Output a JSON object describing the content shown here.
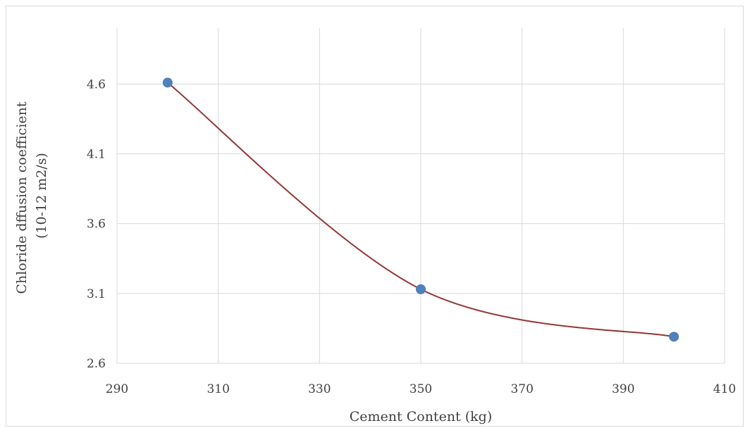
{
  "chart_data": {
    "type": "scatter",
    "title": "",
    "xlabel": "Cement Content (kg)",
    "ylabel_lines": [
      "Chloride dffusion coefficient",
      "(10-12 m2/s)"
    ],
    "xlim": [
      290,
      410
    ],
    "ylim": [
      2.6,
      5.0
    ],
    "x_ticks": [
      290,
      310,
      330,
      350,
      370,
      390,
      410
    ],
    "x_tick_labels": [
      "290",
      "310",
      "330",
      "350",
      "370",
      "390",
      "410"
    ],
    "y_ticks": [
      2.6,
      3.1,
      3.6,
      4.1,
      4.6
    ],
    "y_tick_labels": [
      "2.6",
      "3.1",
      "3.6",
      "4.1",
      "4.6"
    ],
    "grid": true,
    "legend": "none",
    "smooth_line": true,
    "series": [
      {
        "x": [
          300,
          350,
          400
        ],
        "y": [
          4.61,
          3.13,
          2.79
        ],
        "marker_color": "#4f81bd",
        "line_color": "#943634"
      }
    ]
  }
}
